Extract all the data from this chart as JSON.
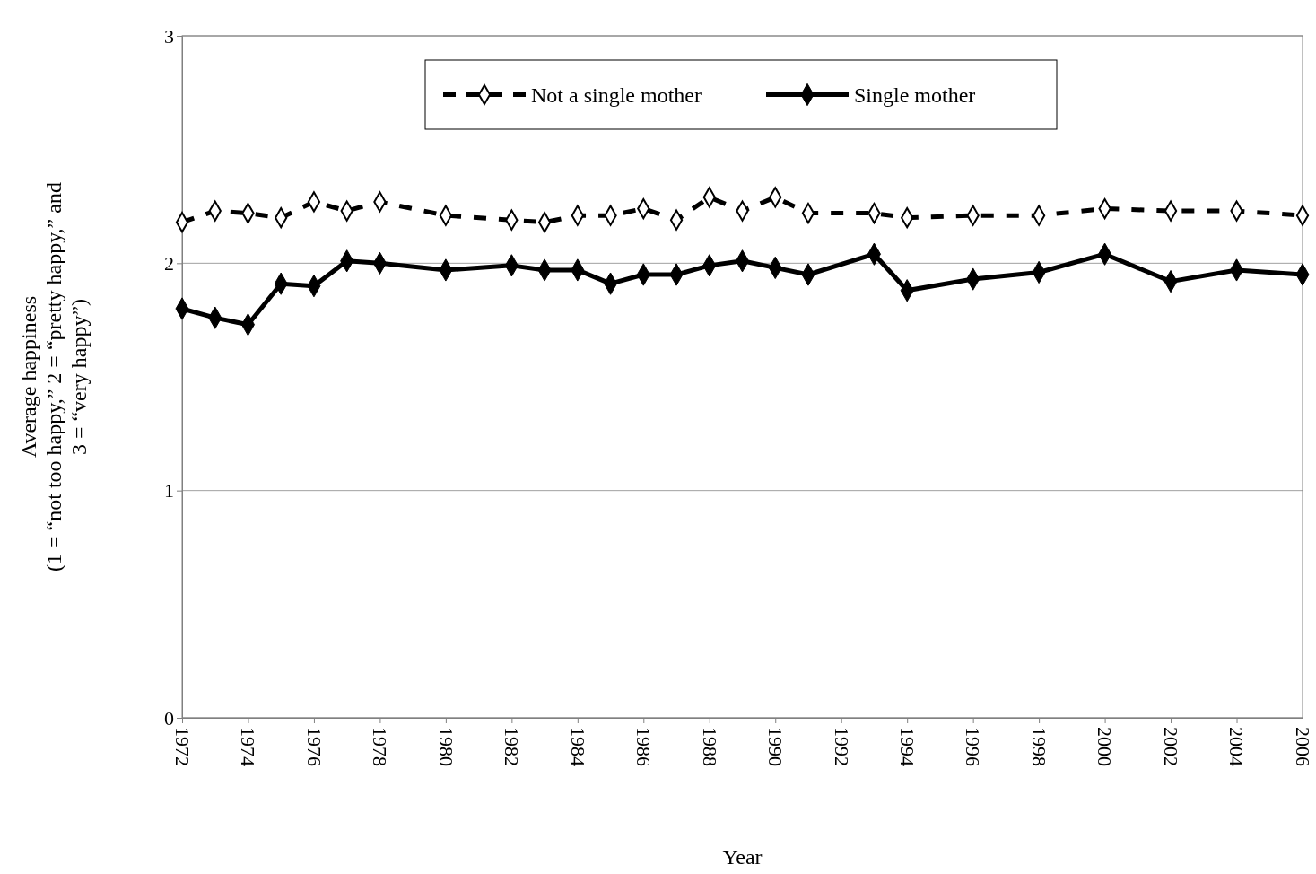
{
  "chart_data": {
    "type": "line",
    "xlabel": "Year",
    "ylabel": "Average happiness\n(1 = “not too happy,” 2 = “pretty happy,” and\n3 = “very happy”)",
    "xlim": [
      1972,
      2006
    ],
    "xticks": [
      1972,
      1974,
      1976,
      1978,
      1980,
      1982,
      1984,
      1986,
      1988,
      1990,
      1992,
      1994,
      1996,
      1998,
      2000,
      2002,
      2004,
      2006
    ],
    "ylim": [
      0,
      3
    ],
    "yticks": [
      0,
      1,
      2,
      3
    ],
    "grid": "y",
    "legend": "top",
    "marker": "diamond",
    "x": [
      1972,
      1973,
      1974,
      1975,
      1976,
      1977,
      1978,
      1980,
      1982,
      1983,
      1984,
      1985,
      1986,
      1987,
      1988,
      1989,
      1990,
      1991,
      1993,
      1994,
      1996,
      1998,
      2000,
      2002,
      2004,
      2006
    ],
    "series": [
      {
        "name": "Not a single mother",
        "color": "#000000",
        "line_style": "dashed",
        "values": [
          2.18,
          2.23,
          2.22,
          2.2,
          2.27,
          2.23,
          2.27,
          2.21,
          2.19,
          2.18,
          2.21,
          2.21,
          2.24,
          2.19,
          2.29,
          2.23,
          2.29,
          2.22,
          2.22,
          2.2,
          2.21,
          2.21,
          2.24,
          2.23,
          2.23,
          2.21
        ]
      },
      {
        "name": "Single mother",
        "color": "#000000",
        "line_style": "solid",
        "values": [
          1.8,
          1.76,
          1.73,
          1.91,
          1.9,
          2.01,
          2.0,
          1.97,
          1.99,
          1.97,
          1.97,
          1.91,
          1.95,
          1.95,
          1.99,
          2.01,
          1.98,
          1.95,
          2.04,
          1.88,
          1.93,
          1.96,
          2.04,
          1.92,
          1.97,
          1.95
        ]
      }
    ]
  }
}
